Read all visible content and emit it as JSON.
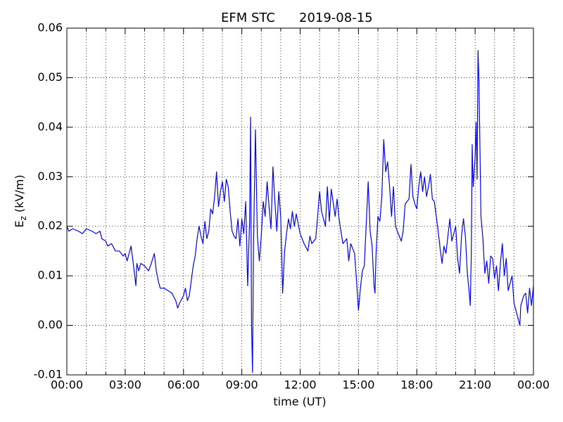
{
  "chart_data": {
    "type": "line",
    "title": "EFM STC",
    "date": "2019-08-15",
    "xlabel": "time (UT)",
    "ylabel": [
      "E",
      "z",
      " (kV/m)"
    ],
    "color": "#0000ff",
    "grid": true,
    "xlim": [
      0,
      24
    ],
    "ylim": [
      -0.01,
      0.06
    ],
    "xticks": [
      {
        "value": 0,
        "label": "00:00"
      },
      {
        "value": 3,
        "label": "03:00"
      },
      {
        "value": 6,
        "label": "06:00"
      },
      {
        "value": 9,
        "label": "09:00"
      },
      {
        "value": 12,
        "label": "12:00"
      },
      {
        "value": 15,
        "label": "15:00"
      },
      {
        "value": 18,
        "label": "18:00"
      },
      {
        "value": 21,
        "label": "21:00"
      },
      {
        "value": 24,
        "label": "00:00"
      }
    ],
    "xminor": [
      1,
      2,
      4,
      5,
      7,
      8,
      10,
      11,
      13,
      14,
      16,
      17,
      19,
      20,
      22,
      23
    ],
    "yticks": [
      -0.01,
      {
        "value": 0,
        "label": "0.00"
      },
      0.01,
      0.02,
      0.03,
      0.04,
      0.05,
      0.06
    ],
    "x": [
      0,
      0.1,
      0.3,
      0.6,
      0.8,
      1.0,
      1.3,
      1.5,
      1.7,
      1.8,
      2.0,
      2.1,
      2.3,
      2.5,
      2.7,
      2.9,
      3.0,
      3.1,
      3.3,
      3.4,
      3.55,
      3.6,
      3.7,
      3.8,
      4.0,
      4.2,
      4.3,
      4.5,
      4.6,
      4.7,
      4.8,
      5.0,
      5.2,
      5.4,
      5.6,
      5.7,
      5.8,
      6.0,
      6.1,
      6.2,
      6.3,
      6.4,
      6.5,
      6.6,
      6.7,
      6.8,
      6.9,
      7.0,
      7.1,
      7.2,
      7.3,
      7.4,
      7.5,
      7.6,
      7.7,
      7.8,
      7.9,
      8.0,
      8.1,
      8.2,
      8.3,
      8.4,
      8.5,
      8.6,
      8.7,
      8.8,
      8.9,
      9.0,
      9.1,
      9.2,
      9.3,
      9.4,
      9.45,
      9.5,
      9.55,
      9.6,
      9.7,
      9.8,
      9.9,
      10.0,
      10.1,
      10.2,
      10.3,
      10.4,
      10.5,
      10.6,
      10.7,
      10.8,
      10.9,
      11.0,
      11.1,
      11.2,
      11.3,
      11.4,
      11.5,
      11.6,
      11.7,
      11.8,
      11.9,
      12.0,
      12.2,
      12.4,
      12.5,
      12.6,
      12.8,
      12.9,
      13.0,
      13.1,
      13.3,
      13.4,
      13.5,
      13.6,
      13.8,
      13.9,
      14.0,
      14.1,
      14.2,
      14.4,
      14.5,
      14.6,
      14.8,
      14.9,
      15.0,
      15.1,
      15.2,
      15.3,
      15.4,
      15.5,
      15.6,
      15.7,
      15.8,
      15.85,
      15.9,
      16.0,
      16.1,
      16.2,
      16.3,
      16.4,
      16.5,
      16.6,
      16.7,
      16.8,
      16.9,
      17.0,
      17.2,
      17.3,
      17.4,
      17.6,
      17.7,
      17.8,
      17.9,
      18.0,
      18.1,
      18.2,
      18.3,
      18.4,
      18.5,
      18.6,
      18.7,
      18.8,
      18.9,
      19.0,
      19.1,
      19.2,
      19.3,
      19.4,
      19.5,
      19.6,
      19.7,
      19.8,
      19.9,
      20.0,
      20.1,
      20.2,
      20.3,
      20.4,
      20.5,
      20.6,
      20.7,
      20.75,
      20.8,
      20.85,
      20.9,
      21.0,
      21.05,
      21.1,
      21.15,
      21.2,
      21.3,
      21.4,
      21.5,
      21.6,
      21.7,
      21.8,
      21.9,
      22.0,
      22.1,
      22.2,
      22.3,
      22.4,
      22.5,
      22.6,
      22.7,
      22.8,
      22.9,
      23.0,
      23.1,
      23.2,
      23.3,
      23.35,
      23.5,
      23.6,
      23.7,
      23.8,
      23.9,
      24.0
    ],
    "values": [
      0.02,
      0.019,
      0.0195,
      0.019,
      0.0185,
      0.0195,
      0.019,
      0.0185,
      0.019,
      0.0175,
      0.017,
      0.016,
      0.0165,
      0.015,
      0.015,
      0.014,
      0.0145,
      0.013,
      0.016,
      0.013,
      0.008,
      0.0125,
      0.011,
      0.0125,
      0.012,
      0.011,
      0.012,
      0.0145,
      0.011,
      0.009,
      0.0075,
      0.0075,
      0.007,
      0.0065,
      0.005,
      0.0035,
      0.0045,
      0.006,
      0.0075,
      0.005,
      0.006,
      0.009,
      0.012,
      0.014,
      0.0175,
      0.02,
      0.018,
      0.0165,
      0.021,
      0.0175,
      0.019,
      0.0235,
      0.0225,
      0.026,
      0.031,
      0.024,
      0.027,
      0.029,
      0.025,
      0.0295,
      0.028,
      0.023,
      0.019,
      0.018,
      0.0175,
      0.0215,
      0.016,
      0.0215,
      0.0185,
      0.025,
      0.008,
      0.021,
      0.042,
      0.0,
      -0.0095,
      0.016,
      0.0395,
      0.018,
      0.013,
      0.018,
      0.025,
      0.022,
      0.029,
      0.024,
      0.0195,
      0.032,
      0.025,
      0.019,
      0.027,
      0.022,
      0.0065,
      0.015,
      0.0185,
      0.0215,
      0.0195,
      0.023,
      0.02,
      0.0225,
      0.0205,
      0.0185,
      0.0165,
      0.015,
      0.018,
      0.0165,
      0.0175,
      0.022,
      0.027,
      0.023,
      0.02,
      0.028,
      0.021,
      0.0275,
      0.022,
      0.0255,
      0.0215,
      0.019,
      0.0165,
      0.0175,
      0.013,
      0.0165,
      0.0145,
      0.009,
      0.003,
      0.0075,
      0.011,
      0.012,
      0.0205,
      0.029,
      0.019,
      0.016,
      0.008,
      0.0065,
      0.014,
      0.022,
      0.021,
      0.026,
      0.0375,
      0.031,
      0.033,
      0.028,
      0.022,
      0.028,
      0.02,
      0.019,
      0.017,
      0.019,
      0.0245,
      0.0255,
      0.0325,
      0.026,
      0.0245,
      0.0235,
      0.028,
      0.031,
      0.027,
      0.03,
      0.026,
      0.028,
      0.0305,
      0.0255,
      0.025,
      0.022,
      0.019,
      0.0155,
      0.0125,
      0.016,
      0.0145,
      0.018,
      0.0215,
      0.017,
      0.0185,
      0.02,
      0.0135,
      0.0105,
      0.018,
      0.0215,
      0.018,
      0.0105,
      0.0065,
      0.004,
      0.0135,
      0.0365,
      0.028,
      0.034,
      0.041,
      0.0295,
      0.0555,
      0.049,
      0.022,
      0.0175,
      0.0105,
      0.013,
      0.0085,
      0.014,
      0.0135,
      0.0095,
      0.012,
      0.007,
      0.0125,
      0.0165,
      0.01,
      0.0135,
      0.007,
      0.0085,
      0.01,
      0.0045,
      0.003,
      0.0015,
      0.0,
      0.004,
      0.006,
      0.0065,
      0.0025,
      0.0075,
      0.004,
      0.008
    ]
  }
}
